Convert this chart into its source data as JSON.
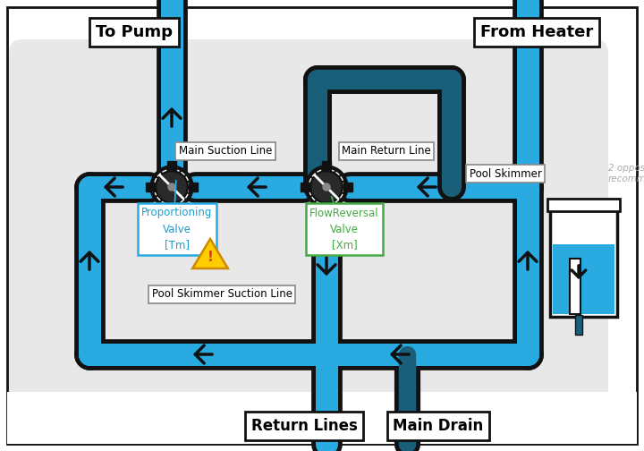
{
  "background_color": "#ffffff",
  "outer_bg": "#f2f2f2",
  "inner_bg_color": "#e0e0e0",
  "pipe_light": "#29abe2",
  "pipe_dark": "#1a5f7a",
  "pipe_outline": "#111111",
  "labels": {
    "to_pump": "To Pump",
    "from_heater": "From Heater",
    "main_suction": "Main Suction Line",
    "main_return": "Main Return Line",
    "proportioning": "Proportioning\nValve\n[Tm]",
    "flow_reversal": "FlowReversal\nValve\n[Xm]",
    "pool_skimmer_suction": "Pool Skimmer Suction Line",
    "pool_skimmer": "Pool Skimmer",
    "return_lines": "Return Lines",
    "main_drain": "Main Drain",
    "side_note": "2 oppos\nrecomm"
  }
}
